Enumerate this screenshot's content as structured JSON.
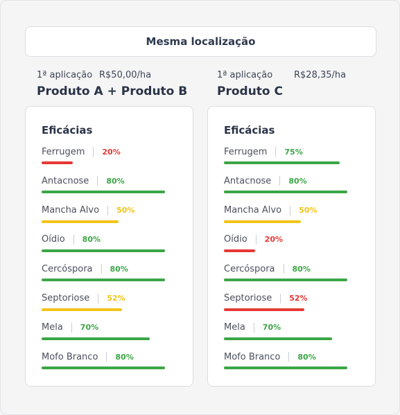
{
  "location_title": "Mesma localização",
  "products": [
    {
      "application_label": "1ª aplicação",
      "price": "R$50,00/ha",
      "name": "Produto A + Produto B",
      "efficacy_title": "Eficácias",
      "efficacies": [
        {
          "name": "Ferrugem",
          "pct": "20%",
          "value": 20,
          "color": "#e53935"
        },
        {
          "name": "Antacnose",
          "pct": "80%",
          "value": 80,
          "color": "#3aa645"
        },
        {
          "name": "Mancha Alvo",
          "pct": "50%",
          "value": 50,
          "color": "#f2c418"
        },
        {
          "name": "Oídio",
          "pct": "80%",
          "value": 80,
          "color": "#3aa645"
        },
        {
          "name": "Cercóspora",
          "pct": "80%",
          "value": 80,
          "color": "#3aa645"
        },
        {
          "name": "Septoriose",
          "pct": "52%",
          "value": 52,
          "color": "#f2c418"
        },
        {
          "name": "Mela",
          "pct": "70%",
          "value": 70,
          "color": "#3aa645"
        },
        {
          "name": "Mofo Branco",
          "pct": "80%",
          "value": 80,
          "color": "#3aa645"
        }
      ]
    },
    {
      "application_label": "1ª aplicação",
      "price": "R$28,35/ha",
      "name": "Produto C",
      "efficacy_title": "Eficácias",
      "efficacies": [
        {
          "name": "Ferrugem",
          "pct": "75%",
          "value": 75,
          "color": "#3aa645"
        },
        {
          "name": "Antacnose",
          "pct": "80%",
          "value": 80,
          "color": "#3aa645"
        },
        {
          "name": "Mancha Alvo",
          "pct": "50%",
          "value": 50,
          "color": "#f2c418"
        },
        {
          "name": "Oídio",
          "pct": "20%",
          "value": 20,
          "color": "#e53935"
        },
        {
          "name": "Cercóspora",
          "pct": "80%",
          "value": 80,
          "color": "#3aa645"
        },
        {
          "name": "Septoriose",
          "pct": "52%",
          "value": 52,
          "color": "#e53935"
        },
        {
          "name": "Mela",
          "pct": "70%",
          "value": 70,
          "color": "#3aa645"
        },
        {
          "name": "Mofo Branco",
          "pct": "80%",
          "value": 80,
          "color": "#3aa645"
        }
      ]
    }
  ]
}
